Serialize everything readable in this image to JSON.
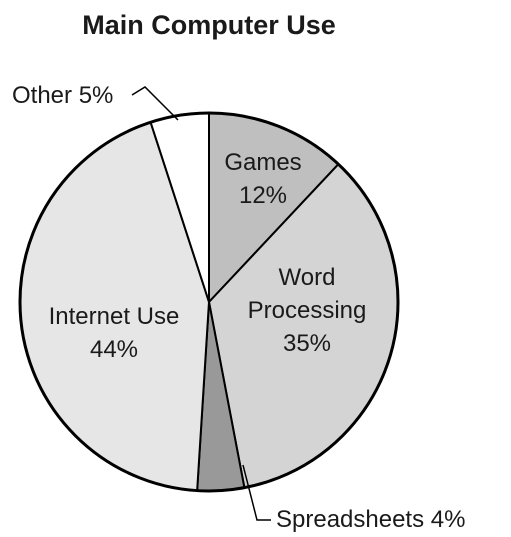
{
  "chart_data": {
    "type": "pie",
    "title": "Main Computer Use",
    "start_angle_deg": 0,
    "direction": "clockwise",
    "slices": [
      {
        "label": "Games",
        "value": 12,
        "value_label": "12%",
        "color": "#bfbfbf"
      },
      {
        "label": "Word Processing",
        "value": 35,
        "value_label": "35%",
        "color": "#d4d4d4"
      },
      {
        "label": "Spreadsheets",
        "value": 4,
        "value_label": "4%",
        "color": "#999999"
      },
      {
        "label": "Internet Use",
        "value": 44,
        "value_label": "44%",
        "color": "#e6e6e6"
      },
      {
        "label": "Other",
        "value": 5,
        "value_label": "5%",
        "color": "#ffffff"
      }
    ],
    "legend": "none"
  }
}
